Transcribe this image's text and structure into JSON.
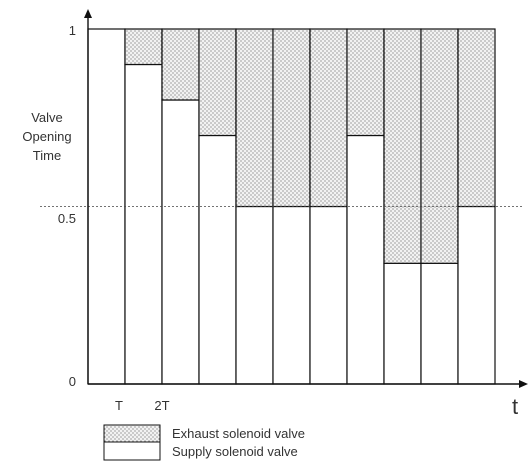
{
  "chart_data": {
    "type": "bar",
    "ylabel": [
      "Valve",
      "Opening",
      "Time"
    ],
    "xlabel": "t",
    "x_tick_labels": [
      "T",
      "2T"
    ],
    "y_ticks": [
      {
        "value": 0,
        "label": "0"
      },
      {
        "value": 0.5,
        "label": "0.5"
      },
      {
        "value": 1,
        "label": "1"
      }
    ],
    "ylim": [
      0,
      1
    ],
    "reference_line": 0.5,
    "series": [
      {
        "name": "Supply solenoid valve",
        "values": [
          1,
          0.9,
          0.8,
          0.7,
          0.5,
          0.5,
          0.5,
          0.7,
          0.34,
          0.34,
          0.5
        ]
      },
      {
        "name": "Exhaust solenoid valve",
        "values": [
          0,
          0.1,
          0.2,
          0.3,
          0.5,
          0.5,
          0.5,
          0.3,
          0.66,
          0.66,
          0.5
        ]
      }
    ]
  },
  "legend": [
    {
      "label": "Exhaust solenoid valve",
      "pattern": "dotted"
    },
    {
      "label": "Supply solenoid valve",
      "pattern": "blank"
    }
  ],
  "colors": {
    "line": "#111111",
    "dots": "#666666",
    "fill": "#f2f2f2"
  }
}
